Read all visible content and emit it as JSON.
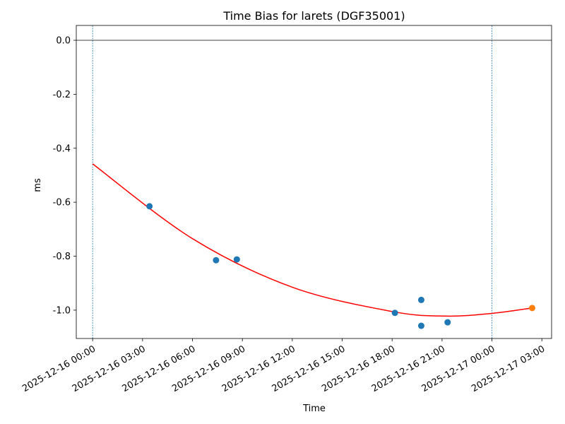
{
  "chart_data": {
    "type": "scatter",
    "title": "Time Bias for larets (DGF35001)",
    "xlabel": "Time",
    "ylabel": "ms",
    "x_ticks": [
      "2025-12-16 00:00",
      "2025-12-16 03:00",
      "2025-12-16 06:00",
      "2025-12-16 09:00",
      "2025-12-16 12:00",
      "2025-12-16 15:00",
      "2025-12-16 18:00",
      "2025-12-16 21:00",
      "2025-12-17 00:00",
      "2025-12-17 03:00"
    ],
    "y_ticks": [
      "0.0",
      "-0.2",
      "-0.4",
      "-0.6",
      "-0.8",
      "-1.0"
    ],
    "xlim": [
      "2025-12-15 23:01",
      "2025-12-17 03:35"
    ],
    "ylim": [
      -1.105,
      0.055
    ],
    "grid": false,
    "reference_lines": {
      "horizontal_y": 0.0,
      "vertical_dashed_x": [
        "2025-12-16 00:00",
        "2025-12-17 00:00"
      ]
    },
    "series": [
      {
        "kind": "points",
        "color": "#1f77b4",
        "points": [
          {
            "x": "2025-12-16 03:25",
            "y": -0.615
          },
          {
            "x": "2025-12-16 07:25",
            "y": -0.815
          },
          {
            "x": "2025-12-16 08:40",
            "y": -0.812
          },
          {
            "x": "2025-12-16 18:10",
            "y": -1.01
          },
          {
            "x": "2025-12-16 19:45",
            "y": -0.962
          },
          {
            "x": "2025-12-16 19:45",
            "y": -1.058
          },
          {
            "x": "2025-12-16 21:20",
            "y": -1.045
          }
        ]
      },
      {
        "kind": "points",
        "color": "#ff7f0e",
        "points": [
          {
            "x": "2025-12-17 02:25",
            "y": -0.992
          }
        ]
      },
      {
        "kind": "fit_curve",
        "color": "#ff0000",
        "points": [
          {
            "x": "2025-12-16 00:00",
            "y": -0.458
          },
          {
            "x": "2025-12-16 06:00",
            "y": -0.735
          },
          {
            "x": "2025-12-16 12:00",
            "y": -0.915
          },
          {
            "x": "2025-12-16 18:00",
            "y": -1.005
          },
          {
            "x": "2025-12-16 21:15",
            "y": -1.022
          },
          {
            "x": "2025-12-17 00:00",
            "y": -1.012
          },
          {
            "x": "2025-12-17 02:25",
            "y": -0.992
          }
        ]
      }
    ]
  }
}
